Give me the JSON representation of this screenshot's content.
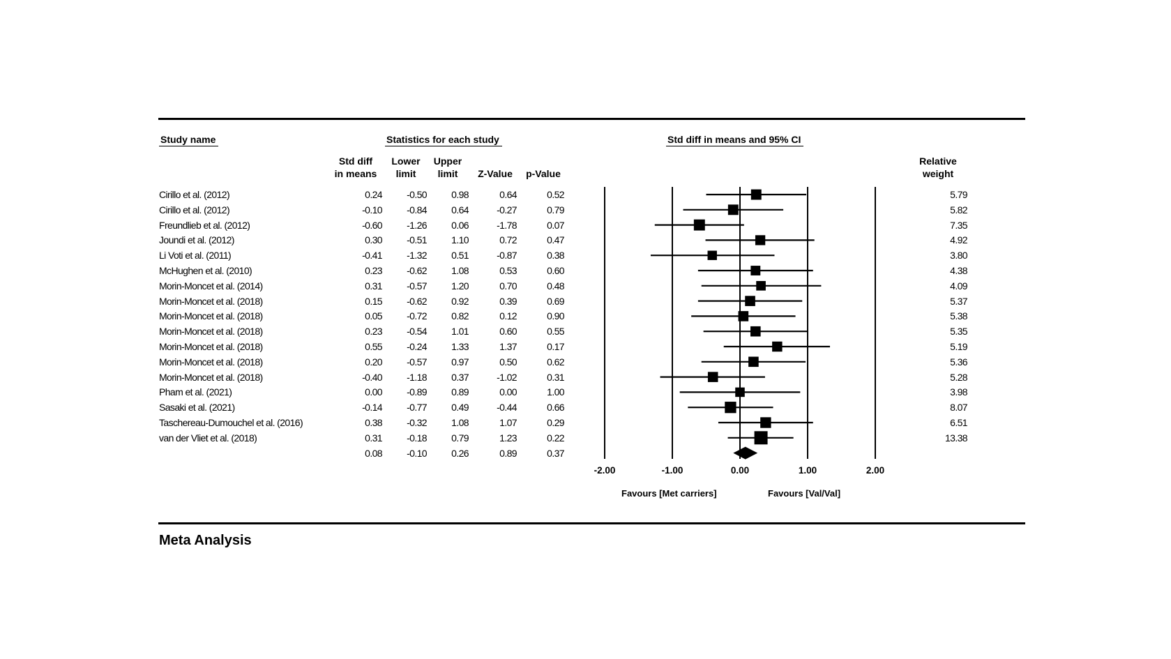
{
  "headers": {
    "study_name": "Study name",
    "statistics": "Statistics for each study",
    "ci": "Std diff in means and 95% CI",
    "std_diff_1": "Std diff",
    "std_diff_2": "in means",
    "lower_1": "Lower",
    "lower_2": "limit",
    "upper_1": "Upper",
    "upper_2": "limit",
    "z": "Z-Value",
    "p": "p-Value",
    "weight_1": "Relative",
    "weight_2": "weight"
  },
  "footer": {
    "title": "Meta Analysis"
  },
  "chart_data": {
    "type": "table",
    "plot": "forest",
    "title": "",
    "x_axis": {
      "range": [
        -2.0,
        2.0
      ],
      "ticks": [
        -2.0,
        -1.0,
        0.0,
        1.0,
        2.0
      ],
      "tick_labels": [
        "-2.00",
        "-1.00",
        "0.00",
        "1.00",
        "2.00"
      ],
      "reference_lines": [
        -1.0,
        0.0,
        1.0,
        2.0
      ]
    },
    "favours_left": "Favours [Met carriers]",
    "favours_right": "Favours [Val/Val]",
    "studies": [
      {
        "name": "Cirillo et al. (2012)",
        "smd": "0.24",
        "lower": "-0.50",
        "upper": "0.98",
        "z": "0.64",
        "p": "0.52",
        "weight": "5.79"
      },
      {
        "name": "Cirillo et al. (2012)",
        "smd": "-0.10",
        "lower": "-0.84",
        "upper": "0.64",
        "z": "-0.27",
        "p": "0.79",
        "weight": "5.82"
      },
      {
        "name": "Freundlieb et al. (2012)",
        "smd": "-0.60",
        "lower": "-1.26",
        "upper": "0.06",
        "z": "-1.78",
        "p": "0.07",
        "weight": "7.35"
      },
      {
        "name": "Joundi et al. (2012)",
        "smd": "0.30",
        "lower": "-0.51",
        "upper": "1.10",
        "z": "0.72",
        "p": "0.47",
        "weight": "4.92"
      },
      {
        "name": "Li Voti et al. (2011)",
        "smd": "-0.41",
        "lower": "-1.32",
        "upper": "0.51",
        "z": "-0.87",
        "p": "0.38",
        "weight": "3.80"
      },
      {
        "name": "McHughen et al. (2010)",
        "smd": "0.23",
        "lower": "-0.62",
        "upper": "1.08",
        "z": "0.53",
        "p": "0.60",
        "weight": "4.38"
      },
      {
        "name": "Morin-Moncet et al. (2014)",
        "smd": "0.31",
        "lower": "-0.57",
        "upper": "1.20",
        "z": "0.70",
        "p": "0.48",
        "weight": "4.09"
      },
      {
        "name": "Morin-Moncet et al. (2018)",
        "smd": "0.15",
        "lower": "-0.62",
        "upper": "0.92",
        "z": "0.39",
        "p": "0.69",
        "weight": "5.37"
      },
      {
        "name": "Morin-Moncet et al. (2018)",
        "smd": "0.05",
        "lower": "-0.72",
        "upper": "0.82",
        "z": "0.12",
        "p": "0.90",
        "weight": "5.38"
      },
      {
        "name": "Morin-Moncet et al. (2018)",
        "smd": "0.23",
        "lower": "-0.54",
        "upper": "1.01",
        "z": "0.60",
        "p": "0.55",
        "weight": "5.35"
      },
      {
        "name": "Morin-Moncet et al. (2018)",
        "smd": "0.55",
        "lower": "-0.24",
        "upper": "1.33",
        "z": "1.37",
        "p": "0.17",
        "weight": "5.19"
      },
      {
        "name": "Morin-Moncet et al. (2018)",
        "smd": "0.20",
        "lower": "-0.57",
        "upper": "0.97",
        "z": "0.50",
        "p": "0.62",
        "weight": "5.36"
      },
      {
        "name": "Morin-Moncet et al. (2018)",
        "smd": "-0.40",
        "lower": "-1.18",
        "upper": "0.37",
        "z": "-1.02",
        "p": "0.31",
        "weight": "5.28"
      },
      {
        "name": "Pham et al. (2021)",
        "smd": "0.00",
        "lower": "-0.89",
        "upper": "0.89",
        "z": "0.00",
        "p": "1.00",
        "weight": "3.98"
      },
      {
        "name": "Sasaki et al. (2021)",
        "smd": "-0.14",
        "lower": "-0.77",
        "upper": "0.49",
        "z": "-0.44",
        "p": "0.66",
        "weight": "8.07"
      },
      {
        "name": "Taschereau-Dumouchel et al. (2016)",
        "smd": "0.38",
        "lower": "-0.32",
        "upper": "1.08",
        "z": "1.07",
        "p": "0.29",
        "weight": "6.51"
      },
      {
        "name": "van der Vliet et al. (2018)",
        "smd": "0.31",
        "lower": "-0.18",
        "upper": "0.79",
        "z": "1.23",
        "p": "0.22",
        "weight": "13.38"
      }
    ],
    "summary": {
      "smd": "0.08",
      "lower": "-0.10",
      "upper": "0.26",
      "z": "0.89",
      "p": "0.37"
    }
  }
}
